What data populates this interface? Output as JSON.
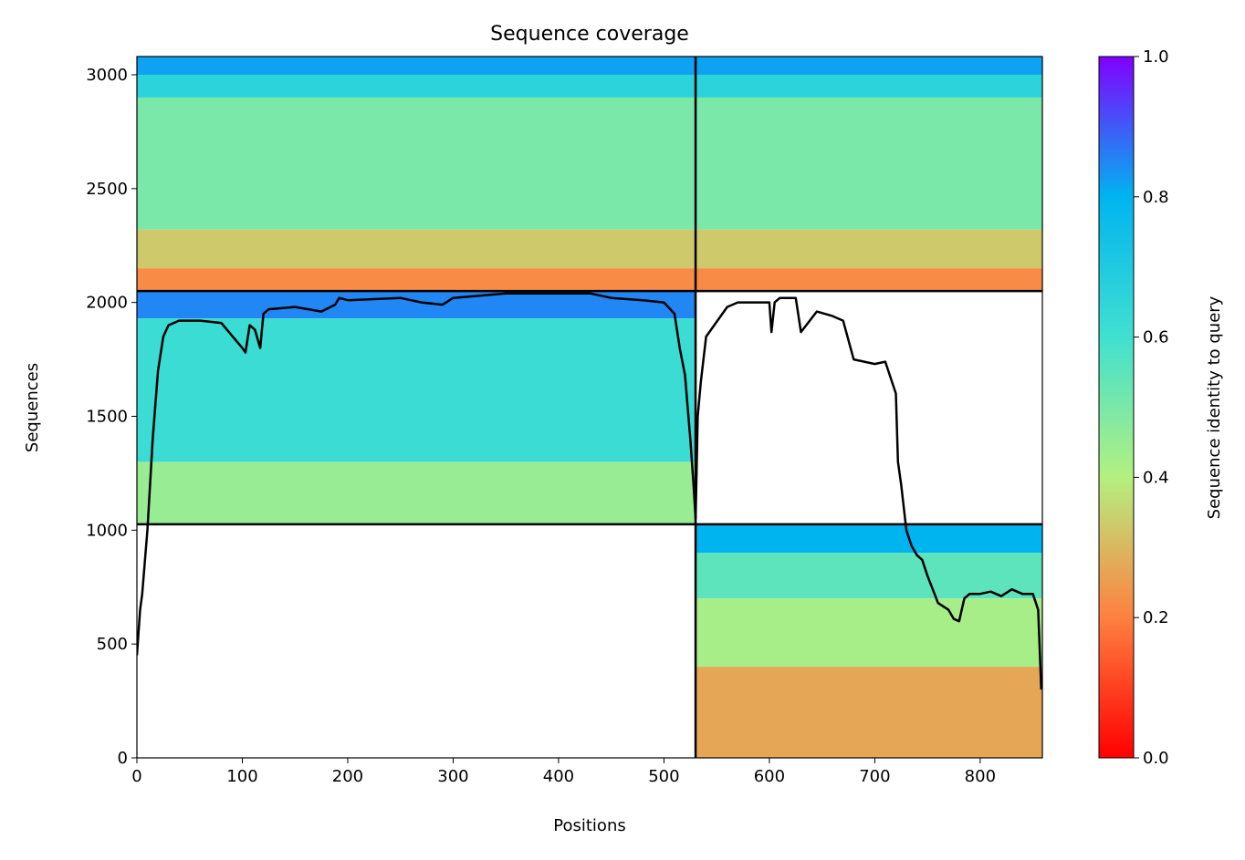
{
  "chart_data": {
    "type": "heatmap",
    "title": "Sequence coverage",
    "xlabel": "Positions",
    "ylabel": "Sequences",
    "xlim": [
      0,
      859
    ],
    "ylim": [
      0,
      3080
    ],
    "x_ticks": [
      0,
      100,
      200,
      300,
      400,
      500,
      600,
      700,
      800
    ],
    "y_ticks": [
      0,
      500,
      1000,
      1500,
      2000,
      2500,
      3000
    ],
    "colorbar": {
      "label": "Sequence identity to query",
      "range": [
        0,
        1
      ],
      "ticks": [
        "0.0",
        "0.2",
        "0.4",
        "0.6",
        "0.8",
        "1.0"
      ],
      "colormap": [
        "#ff0000",
        "#ff8040",
        "#b4f080",
        "#40e0d0",
        "#00b4f0",
        "#8000ff"
      ]
    },
    "chain_boundaries": {
      "x": [
        530
      ],
      "y": [
        1026,
        2050
      ]
    },
    "blocks": [
      {
        "name": "chain-A-msa",
        "x_range": [
          0,
          530
        ],
        "y_range": [
          1026,
          2050
        ],
        "identity_bands": [
          {
            "y_top": 2050,
            "y_bottom": 1930,
            "identity": 0.85
          },
          {
            "y_top": 1930,
            "y_bottom": 1300,
            "identity": 0.62
          },
          {
            "y_top": 1300,
            "y_bottom": 1026,
            "identity": 0.45
          }
        ]
      },
      {
        "name": "chain-B-msa",
        "x_range": [
          530,
          859
        ],
        "y_range": [
          0,
          1026
        ],
        "identity_bands": [
          {
            "y_top": 1026,
            "y_bottom": 900,
            "identity": 0.8
          },
          {
            "y_top": 900,
            "y_bottom": 700,
            "identity": 0.55
          },
          {
            "y_top": 700,
            "y_bottom": 400,
            "identity": 0.42
          },
          {
            "y_top": 400,
            "y_bottom": 0,
            "identity": 0.27
          }
        ]
      },
      {
        "name": "paired-msa",
        "x_range": [
          0,
          859
        ],
        "y_range": [
          2050,
          3080
        ],
        "identity_bands": [
          {
            "y_top": 3080,
            "y_bottom": 3000,
            "identity": 0.82
          },
          {
            "y_top": 3000,
            "y_bottom": 2900,
            "identity": 0.66
          },
          {
            "y_top": 2900,
            "y_bottom": 2320,
            "identity": 0.5
          },
          {
            "y_top": 2320,
            "y_bottom": 2150,
            "identity": 0.33
          },
          {
            "y_top": 2150,
            "y_bottom": 2050,
            "identity": 0.22
          }
        ]
      }
    ],
    "coverage_line": {
      "x": [
        0,
        3,
        5,
        10,
        15,
        20,
        25,
        30,
        40,
        60,
        80,
        100,
        103,
        107,
        112,
        117,
        120,
        125,
        150,
        175,
        188,
        192,
        200,
        250,
        270,
        290,
        300,
        350,
        400,
        430,
        450,
        480,
        500,
        510,
        515,
        520,
        525,
        528,
        530,
        532,
        535,
        540,
        560,
        570,
        590,
        600,
        602,
        605,
        610,
        625,
        630,
        635,
        645,
        660,
        670,
        680,
        700,
        710,
        720,
        722,
        725,
        730,
        735,
        740,
        745,
        750,
        760,
        770,
        775,
        780,
        785,
        790,
        800,
        810,
        820,
        830,
        840,
        850,
        855,
        858
      ],
      "y": [
        450,
        650,
        720,
        1000,
        1400,
        1700,
        1850,
        1900,
        1920,
        1920,
        1910,
        1800,
        1780,
        1900,
        1880,
        1800,
        1950,
        1970,
        1980,
        1960,
        1990,
        2020,
        2010,
        2020,
        2000,
        1990,
        2020,
        2040,
        2040,
        2040,
        2020,
        2010,
        2000,
        1950,
        1800,
        1680,
        1400,
        1200,
        1050,
        1500,
        1650,
        1850,
        1980,
        2000,
        2000,
        2000,
        1870,
        2000,
        2020,
        2020,
        1870,
        1900,
        1960,
        1940,
        1920,
        1750,
        1730,
        1740,
        1600,
        1300,
        1200,
        1000,
        930,
        890,
        870,
        800,
        680,
        650,
        610,
        600,
        700,
        720,
        720,
        730,
        710,
        740,
        720,
        720,
        650,
        300
      ]
    }
  }
}
